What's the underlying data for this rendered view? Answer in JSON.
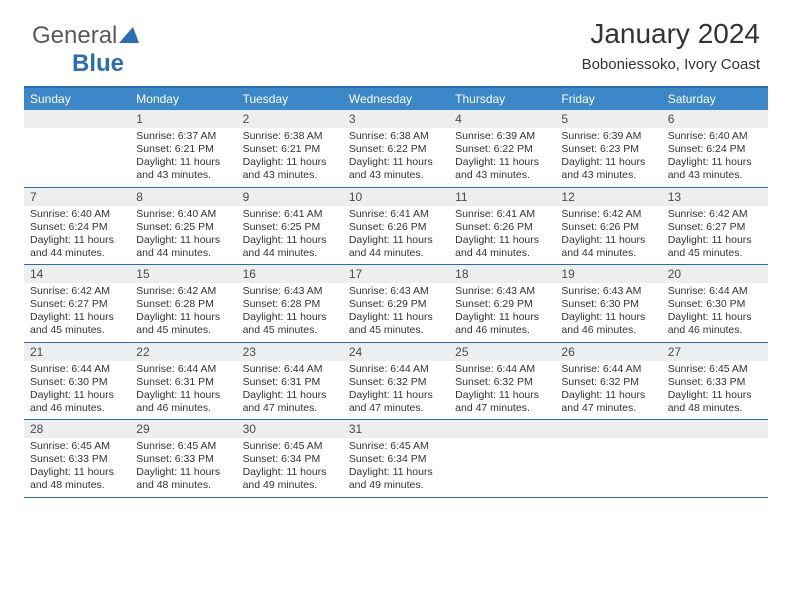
{
  "logo": {
    "text_general": "General",
    "text_blue": "Blue"
  },
  "header": {
    "title": "January 2024",
    "location": "Boboniessoko, Ivory Coast"
  },
  "colors": {
    "header_band": "#3b87c8",
    "border": "#2a6db5",
    "daynum_bg": "#eceef0",
    "text": "#333333",
    "logo_blue": "#2a6db5"
  },
  "dow": [
    "Sunday",
    "Monday",
    "Tuesday",
    "Wednesday",
    "Thursday",
    "Friday",
    "Saturday"
  ],
  "weeks": [
    [
      null,
      {
        "n": "1",
        "sr": "Sunrise: 6:37 AM",
        "ss": "Sunset: 6:21 PM",
        "dl": "Daylight: 11 hours and 43 minutes."
      },
      {
        "n": "2",
        "sr": "Sunrise: 6:38 AM",
        "ss": "Sunset: 6:21 PM",
        "dl": "Daylight: 11 hours and 43 minutes."
      },
      {
        "n": "3",
        "sr": "Sunrise: 6:38 AM",
        "ss": "Sunset: 6:22 PM",
        "dl": "Daylight: 11 hours and 43 minutes."
      },
      {
        "n": "4",
        "sr": "Sunrise: 6:39 AM",
        "ss": "Sunset: 6:22 PM",
        "dl": "Daylight: 11 hours and 43 minutes."
      },
      {
        "n": "5",
        "sr": "Sunrise: 6:39 AM",
        "ss": "Sunset: 6:23 PM",
        "dl": "Daylight: 11 hours and 43 minutes."
      },
      {
        "n": "6",
        "sr": "Sunrise: 6:40 AM",
        "ss": "Sunset: 6:24 PM",
        "dl": "Daylight: 11 hours and 43 minutes."
      }
    ],
    [
      {
        "n": "7",
        "sr": "Sunrise: 6:40 AM",
        "ss": "Sunset: 6:24 PM",
        "dl": "Daylight: 11 hours and 44 minutes."
      },
      {
        "n": "8",
        "sr": "Sunrise: 6:40 AM",
        "ss": "Sunset: 6:25 PM",
        "dl": "Daylight: 11 hours and 44 minutes."
      },
      {
        "n": "9",
        "sr": "Sunrise: 6:41 AM",
        "ss": "Sunset: 6:25 PM",
        "dl": "Daylight: 11 hours and 44 minutes."
      },
      {
        "n": "10",
        "sr": "Sunrise: 6:41 AM",
        "ss": "Sunset: 6:26 PM",
        "dl": "Daylight: 11 hours and 44 minutes."
      },
      {
        "n": "11",
        "sr": "Sunrise: 6:41 AM",
        "ss": "Sunset: 6:26 PM",
        "dl": "Daylight: 11 hours and 44 minutes."
      },
      {
        "n": "12",
        "sr": "Sunrise: 6:42 AM",
        "ss": "Sunset: 6:26 PM",
        "dl": "Daylight: 11 hours and 44 minutes."
      },
      {
        "n": "13",
        "sr": "Sunrise: 6:42 AM",
        "ss": "Sunset: 6:27 PM",
        "dl": "Daylight: 11 hours and 45 minutes."
      }
    ],
    [
      {
        "n": "14",
        "sr": "Sunrise: 6:42 AM",
        "ss": "Sunset: 6:27 PM",
        "dl": "Daylight: 11 hours and 45 minutes."
      },
      {
        "n": "15",
        "sr": "Sunrise: 6:42 AM",
        "ss": "Sunset: 6:28 PM",
        "dl": "Daylight: 11 hours and 45 minutes."
      },
      {
        "n": "16",
        "sr": "Sunrise: 6:43 AM",
        "ss": "Sunset: 6:28 PM",
        "dl": "Daylight: 11 hours and 45 minutes."
      },
      {
        "n": "17",
        "sr": "Sunrise: 6:43 AM",
        "ss": "Sunset: 6:29 PM",
        "dl": "Daylight: 11 hours and 45 minutes."
      },
      {
        "n": "18",
        "sr": "Sunrise: 6:43 AM",
        "ss": "Sunset: 6:29 PM",
        "dl": "Daylight: 11 hours and 46 minutes."
      },
      {
        "n": "19",
        "sr": "Sunrise: 6:43 AM",
        "ss": "Sunset: 6:30 PM",
        "dl": "Daylight: 11 hours and 46 minutes."
      },
      {
        "n": "20",
        "sr": "Sunrise: 6:44 AM",
        "ss": "Sunset: 6:30 PM",
        "dl": "Daylight: 11 hours and 46 minutes."
      }
    ],
    [
      {
        "n": "21",
        "sr": "Sunrise: 6:44 AM",
        "ss": "Sunset: 6:30 PM",
        "dl": "Daylight: 11 hours and 46 minutes."
      },
      {
        "n": "22",
        "sr": "Sunrise: 6:44 AM",
        "ss": "Sunset: 6:31 PM",
        "dl": "Daylight: 11 hours and 46 minutes."
      },
      {
        "n": "23",
        "sr": "Sunrise: 6:44 AM",
        "ss": "Sunset: 6:31 PM",
        "dl": "Daylight: 11 hours and 47 minutes."
      },
      {
        "n": "24",
        "sr": "Sunrise: 6:44 AM",
        "ss": "Sunset: 6:32 PM",
        "dl": "Daylight: 11 hours and 47 minutes."
      },
      {
        "n": "25",
        "sr": "Sunrise: 6:44 AM",
        "ss": "Sunset: 6:32 PM",
        "dl": "Daylight: 11 hours and 47 minutes."
      },
      {
        "n": "26",
        "sr": "Sunrise: 6:44 AM",
        "ss": "Sunset: 6:32 PM",
        "dl": "Daylight: 11 hours and 47 minutes."
      },
      {
        "n": "27",
        "sr": "Sunrise: 6:45 AM",
        "ss": "Sunset: 6:33 PM",
        "dl": "Daylight: 11 hours and 48 minutes."
      }
    ],
    [
      {
        "n": "28",
        "sr": "Sunrise: 6:45 AM",
        "ss": "Sunset: 6:33 PM",
        "dl": "Daylight: 11 hours and 48 minutes."
      },
      {
        "n": "29",
        "sr": "Sunrise: 6:45 AM",
        "ss": "Sunset: 6:33 PM",
        "dl": "Daylight: 11 hours and 48 minutes."
      },
      {
        "n": "30",
        "sr": "Sunrise: 6:45 AM",
        "ss": "Sunset: 6:34 PM",
        "dl": "Daylight: 11 hours and 49 minutes."
      },
      {
        "n": "31",
        "sr": "Sunrise: 6:45 AM",
        "ss": "Sunset: 6:34 PM",
        "dl": "Daylight: 11 hours and 49 minutes."
      },
      null,
      null,
      null
    ]
  ]
}
